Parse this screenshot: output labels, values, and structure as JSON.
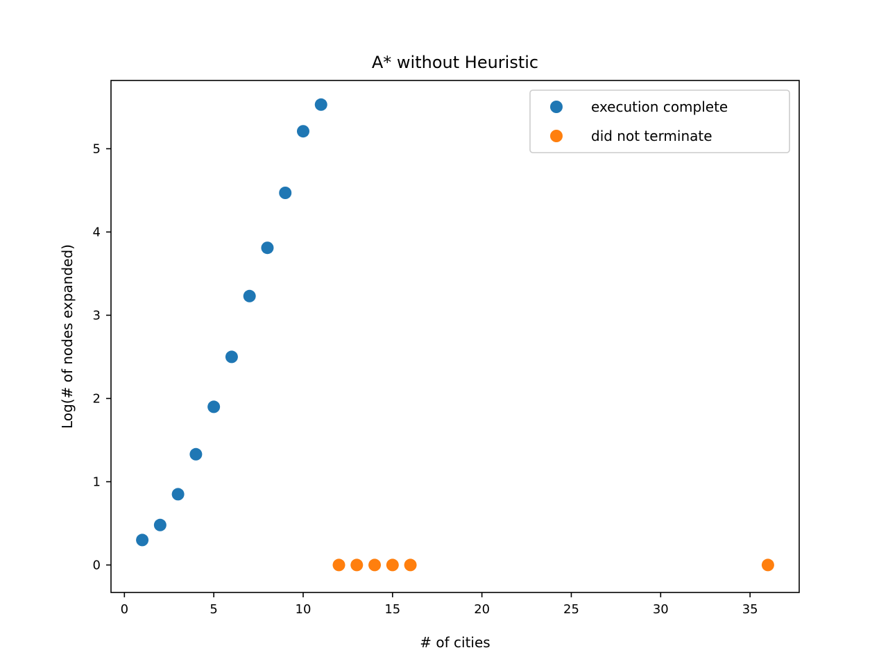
{
  "chart_data": {
    "type": "scatter",
    "title": "A* without Heuristic",
    "xlabel": "# of cities",
    "ylabel": "Log(# of nodes expanded)",
    "xlim": [
      -0.75,
      37.75
    ],
    "ylim": [
      -0.33,
      5.82
    ],
    "xticks": [
      0,
      5,
      10,
      15,
      20,
      25,
      30,
      35
    ],
    "yticks": [
      0,
      1,
      2,
      3,
      4,
      5
    ],
    "grid": false,
    "legend_position": "upper right",
    "series": [
      {
        "name": "execution complete",
        "color": "#1f77b4",
        "x": [
          1,
          2,
          3,
          4,
          5,
          6,
          7,
          8,
          9,
          10,
          11
        ],
        "y": [
          0.3,
          0.48,
          0.85,
          1.33,
          1.9,
          2.5,
          3.23,
          3.81,
          4.47,
          5.21,
          5.53
        ]
      },
      {
        "name": "did not terminate",
        "color": "#ff7f0e",
        "x": [
          12,
          13,
          14,
          15,
          16,
          36
        ],
        "y": [
          0,
          0,
          0,
          0,
          0,
          0
        ]
      }
    ]
  }
}
